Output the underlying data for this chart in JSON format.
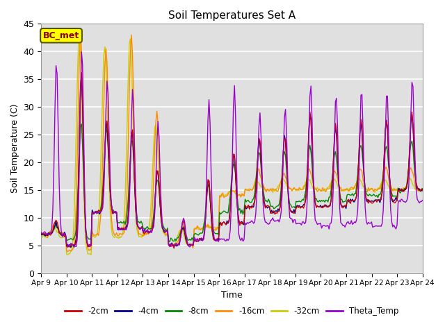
{
  "title": "Soil Temperatures Set A",
  "xlabel": "Time",
  "ylabel": "Soil Temperature (C)",
  "ylim": [
    0,
    45
  ],
  "annotation": "BC_met",
  "bg_color": "#e0e0e0",
  "fig_color": "#ffffff",
  "lines": {
    "-2cm": {
      "color": "#cc0000",
      "lw": 1.0
    },
    "-4cm": {
      "color": "#00008b",
      "lw": 1.0
    },
    "-8cm": {
      "color": "#008800",
      "lw": 1.0
    },
    "-16cm": {
      "color": "#ff8c00",
      "lw": 1.0
    },
    "-32cm": {
      "color": "#cccc00",
      "lw": 1.0
    },
    "Theta_Temp": {
      "color": "#9900cc",
      "lw": 1.0
    }
  },
  "xtick_labels": [
    "Apr 9",
    "Apr 10",
    "Apr 11",
    "Apr 12",
    "Apr 13",
    "Apr 14",
    "Apr 15",
    "Apr 16",
    "Apr 17",
    "Apr 18",
    "Apr 19",
    "Apr 20",
    "Apr 21",
    "Apr 22",
    "Apr 23",
    "Apr 24"
  ],
  "ytick_positions": [
    0,
    5,
    10,
    15,
    20,
    25,
    30,
    35,
    40,
    45
  ]
}
